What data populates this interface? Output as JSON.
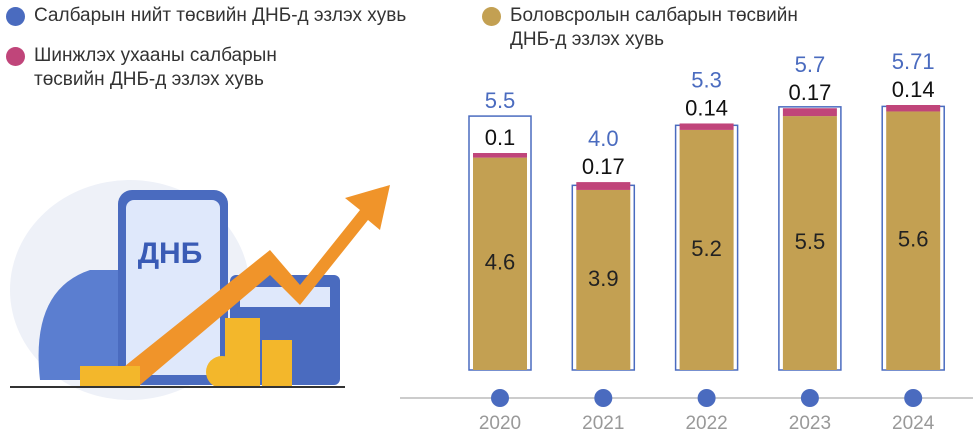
{
  "chart_data": {
    "type": "stacked-bar",
    "categories": [
      "2020",
      "2021",
      "2022",
      "2023",
      "2024"
    ],
    "series": [
      {
        "name": "Салбарын нийт төсвийн ДНБ-д эзлэх хувь",
        "color": "#4a6bbf",
        "values": [
          5.5,
          4.0,
          5.3,
          5.7,
          5.71
        ],
        "value_labels": [
          "5.5",
          "4.0",
          "5.3",
          "5.7",
          "5.71"
        ]
      },
      {
        "name": "Боловсролын салбарын төсвийн ДНБ-д эзлэх хувь",
        "color": "#c3a052",
        "values": [
          4.6,
          3.9,
          5.2,
          5.5,
          5.6
        ]
      },
      {
        "name": "Шинжлэх ухааны салбарын төсвийн ДНБ-д эзлэх хувь",
        "color": "#c0457a",
        "values": [
          0.1,
          0.17,
          0.14,
          0.17,
          0.14
        ]
      }
    ],
    "annotations": [
      "ДНБ"
    ]
  }
}
